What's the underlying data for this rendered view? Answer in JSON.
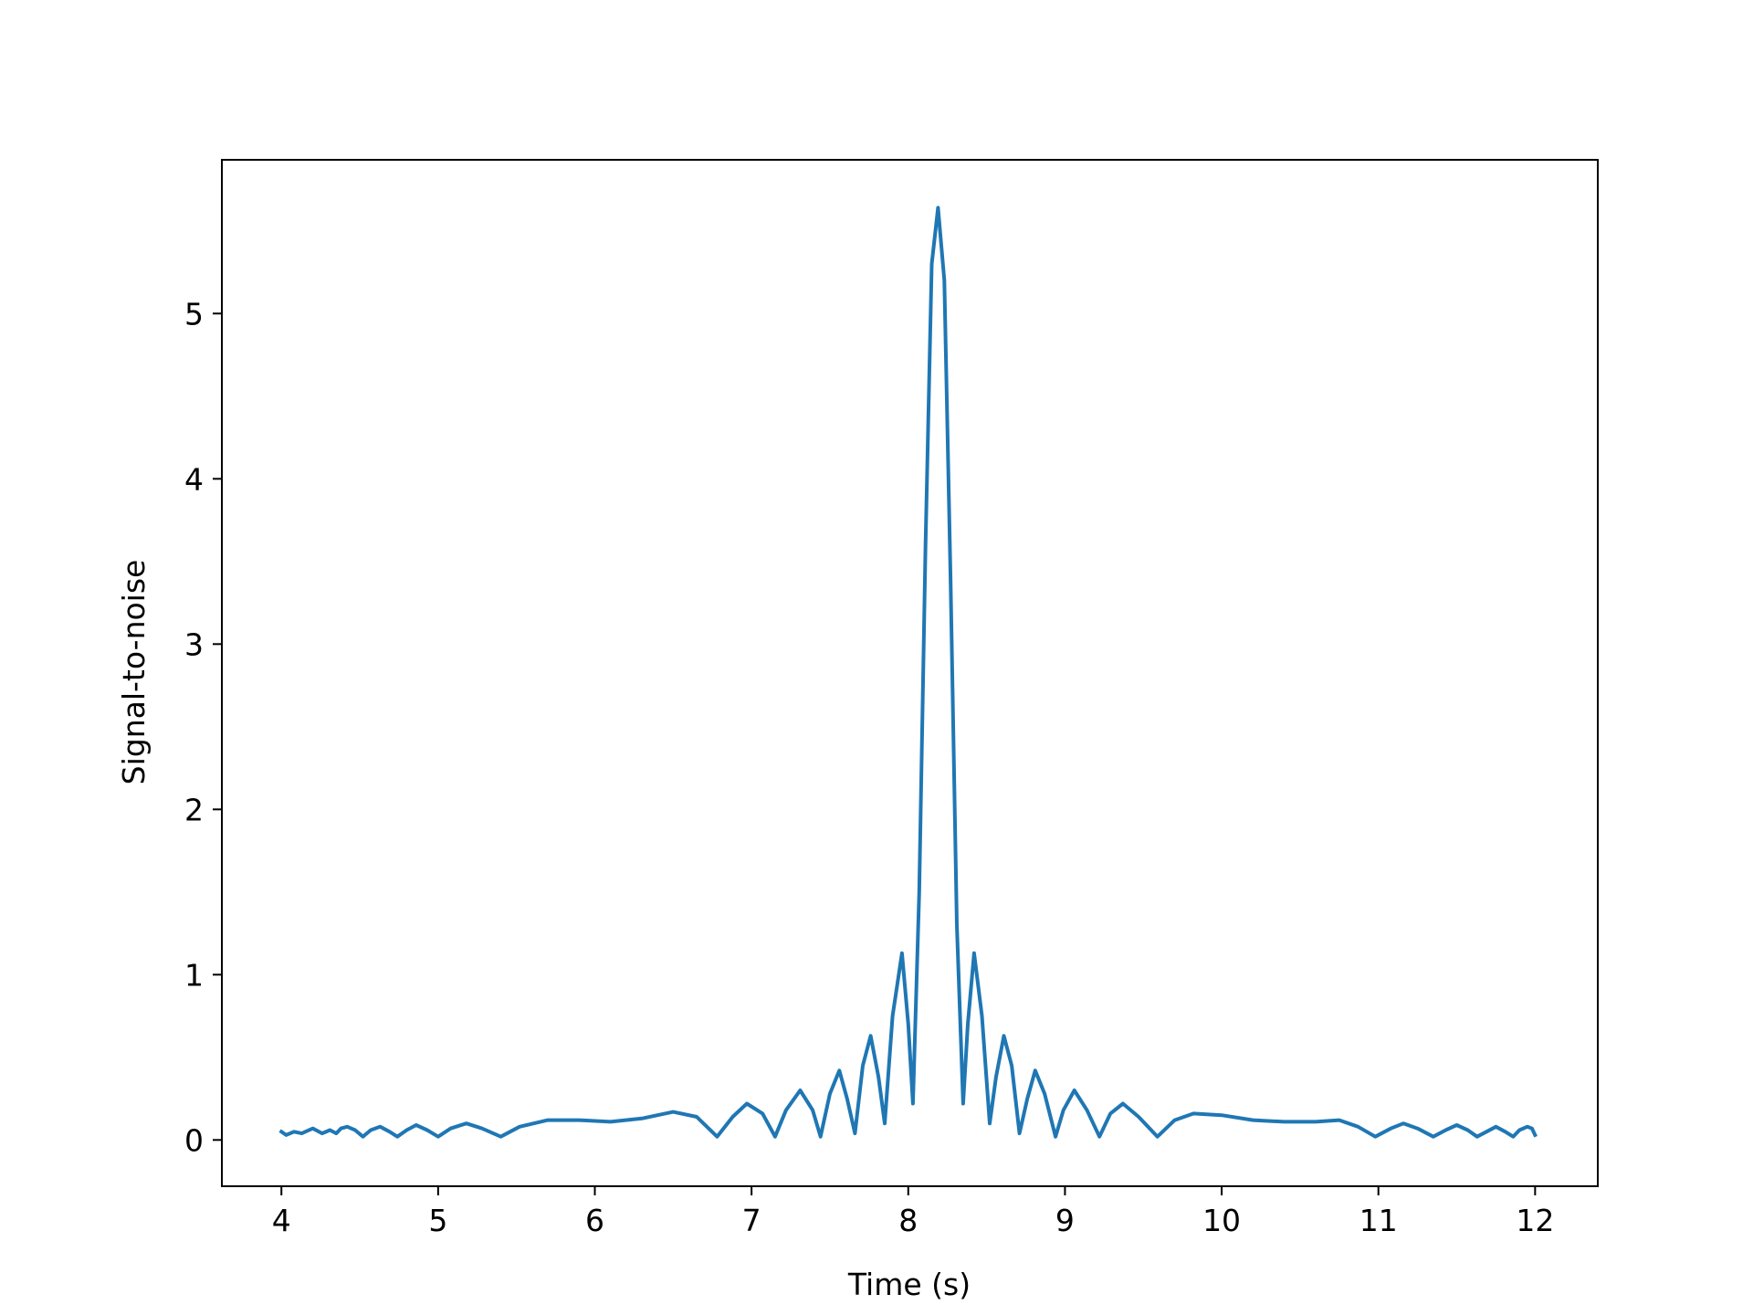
{
  "chart_data": {
    "type": "line",
    "title": "",
    "xlabel": "Time (s)",
    "ylabel": "Signal-to-noise",
    "xlim": [
      3.62,
      12.4
    ],
    "ylim": [
      -0.28,
      5.93
    ],
    "xticks": [
      4,
      5,
      6,
      7,
      8,
      9,
      10,
      11,
      12
    ],
    "xtick_labels": [
      "4",
      "5",
      "6",
      "7",
      "8",
      "9",
      "10",
      "11",
      "12"
    ],
    "yticks": [
      0,
      1,
      2,
      3,
      4,
      5
    ],
    "ytick_labels": [
      "0",
      "1",
      "2",
      "3",
      "4",
      "5"
    ],
    "grid": false,
    "legend": "none",
    "series": [
      {
        "color": "#1f77b4",
        "points": [
          [
            4.0,
            0.05
          ],
          [
            4.03,
            0.03
          ],
          [
            4.08,
            0.05
          ],
          [
            4.13,
            0.04
          ],
          [
            4.2,
            0.07
          ],
          [
            4.26,
            0.04
          ],
          [
            4.31,
            0.06
          ],
          [
            4.35,
            0.04
          ],
          [
            4.38,
            0.07
          ],
          [
            4.42,
            0.08
          ],
          [
            4.47,
            0.06
          ],
          [
            4.52,
            0.02
          ],
          [
            4.57,
            0.06
          ],
          [
            4.63,
            0.08
          ],
          [
            4.69,
            0.05
          ],
          [
            4.74,
            0.02
          ],
          [
            4.8,
            0.06
          ],
          [
            4.86,
            0.09
          ],
          [
            4.93,
            0.06
          ],
          [
            5.0,
            0.02
          ],
          [
            5.08,
            0.07
          ],
          [
            5.18,
            0.1
          ],
          [
            5.28,
            0.07
          ],
          [
            5.4,
            0.02
          ],
          [
            5.52,
            0.08
          ],
          [
            5.7,
            0.12
          ],
          [
            5.9,
            0.12
          ],
          [
            6.1,
            0.11
          ],
          [
            6.3,
            0.13
          ],
          [
            6.5,
            0.17
          ],
          [
            6.65,
            0.14
          ],
          [
            6.78,
            0.02
          ],
          [
            6.88,
            0.14
          ],
          [
            6.97,
            0.22
          ],
          [
            7.07,
            0.16
          ],
          [
            7.15,
            0.02
          ],
          [
            7.22,
            0.18
          ],
          [
            7.31,
            0.3
          ],
          [
            7.39,
            0.18
          ],
          [
            7.44,
            0.02
          ],
          [
            7.5,
            0.28
          ],
          [
            7.56,
            0.42
          ],
          [
            7.61,
            0.25
          ],
          [
            7.66,
            0.04
          ],
          [
            7.71,
            0.45
          ],
          [
            7.76,
            0.63
          ],
          [
            7.81,
            0.38
          ],
          [
            7.85,
            0.1
          ],
          [
            7.9,
            0.75
          ],
          [
            7.96,
            1.13
          ],
          [
            8.0,
            0.7
          ],
          [
            8.03,
            0.22
          ],
          [
            8.07,
            1.5
          ],
          [
            8.11,
            3.6
          ],
          [
            8.15,
            5.3
          ],
          [
            8.19,
            5.64
          ],
          [
            8.23,
            5.2
          ],
          [
            8.27,
            3.4
          ],
          [
            8.31,
            1.3
          ],
          [
            8.35,
            0.22
          ],
          [
            8.38,
            0.7
          ],
          [
            8.42,
            1.13
          ],
          [
            8.47,
            0.75
          ],
          [
            8.52,
            0.1
          ],
          [
            8.56,
            0.38
          ],
          [
            8.61,
            0.63
          ],
          [
            8.66,
            0.45
          ],
          [
            8.71,
            0.04
          ],
          [
            8.76,
            0.25
          ],
          [
            8.81,
            0.42
          ],
          [
            8.87,
            0.28
          ],
          [
            8.94,
            0.02
          ],
          [
            8.99,
            0.18
          ],
          [
            9.06,
            0.3
          ],
          [
            9.14,
            0.18
          ],
          [
            9.22,
            0.02
          ],
          [
            9.29,
            0.16
          ],
          [
            9.37,
            0.22
          ],
          [
            9.47,
            0.14
          ],
          [
            9.59,
            0.02
          ],
          [
            9.7,
            0.12
          ],
          [
            9.82,
            0.16
          ],
          [
            10.0,
            0.15
          ],
          [
            10.2,
            0.12
          ],
          [
            10.4,
            0.11
          ],
          [
            10.6,
            0.11
          ],
          [
            10.75,
            0.12
          ],
          [
            10.87,
            0.08
          ],
          [
            10.98,
            0.02
          ],
          [
            11.08,
            0.07
          ],
          [
            11.16,
            0.1
          ],
          [
            11.25,
            0.07
          ],
          [
            11.35,
            0.02
          ],
          [
            11.43,
            0.06
          ],
          [
            11.5,
            0.09
          ],
          [
            11.57,
            0.06
          ],
          [
            11.63,
            0.02
          ],
          [
            11.69,
            0.05
          ],
          [
            11.75,
            0.08
          ],
          [
            11.81,
            0.05
          ],
          [
            11.86,
            0.02
          ],
          [
            11.9,
            0.06
          ],
          [
            11.95,
            0.08
          ],
          [
            11.98,
            0.07
          ],
          [
            12.0,
            0.03
          ]
        ]
      }
    ]
  }
}
